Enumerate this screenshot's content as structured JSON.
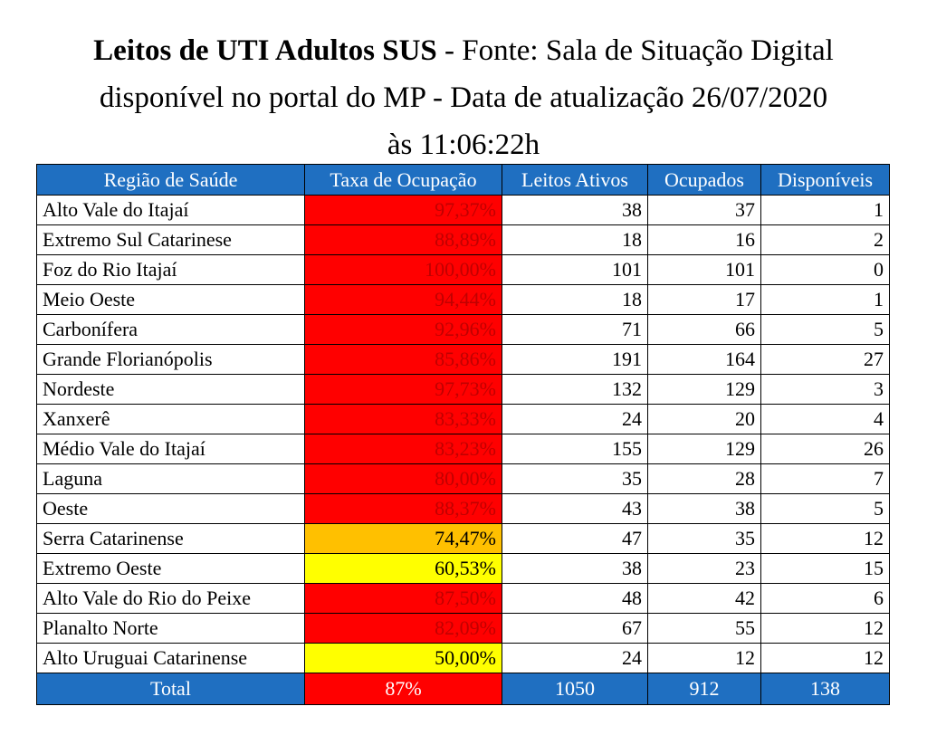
{
  "title": {
    "bold": "Leitos de UTI Adultos SUS",
    "rest_line1": " - Fonte: Sala de Situação Digital",
    "line2": "disponível no portal do MP - Data de atualização 26/07/2020",
    "line3": "às 11:06:22h"
  },
  "colors": {
    "header_bg": "#1f6fc1",
    "red": "#ff0000",
    "orange": "#ffc000",
    "yellow": "#ffff00",
    "red_text": "#c00000"
  },
  "table": {
    "headers": [
      "Região de Saúde",
      "Taxa de Ocupação",
      "Leitos Ativos",
      "Ocupados",
      "Disponíveis"
    ],
    "rows": [
      {
        "region": "Alto Vale do Itajaí",
        "rate": "97,37%",
        "level": "red",
        "ativos": "38",
        "ocupados": "37",
        "disponiveis": "1"
      },
      {
        "region": "Extremo Sul Catarinese",
        "rate": "88,89%",
        "level": "red",
        "ativos": "18",
        "ocupados": "16",
        "disponiveis": "2"
      },
      {
        "region": "Foz do Rio Itajaí",
        "rate": "100,00%",
        "level": "red",
        "ativos": "101",
        "ocupados": "101",
        "disponiveis": "0"
      },
      {
        "region": "Meio Oeste",
        "rate": "94,44%",
        "level": "red",
        "ativos": "18",
        "ocupados": "17",
        "disponiveis": "1"
      },
      {
        "region": "Carbonífera",
        "rate": "92,96%",
        "level": "red",
        "ativos": "71",
        "ocupados": "66",
        "disponiveis": "5"
      },
      {
        "region": "Grande Florianópolis",
        "rate": "85,86%",
        "level": "red",
        "ativos": "191",
        "ocupados": "164",
        "disponiveis": "27"
      },
      {
        "region": "Nordeste",
        "rate": "97,73%",
        "level": "red",
        "ativos": "132",
        "ocupados": "129",
        "disponiveis": "3"
      },
      {
        "region": "Xanxerê",
        "rate": "83,33%",
        "level": "red",
        "ativos": "24",
        "ocupados": "20",
        "disponiveis": "4"
      },
      {
        "region": "Médio Vale do Itajaí",
        "rate": "83,23%",
        "level": "red",
        "ativos": "155",
        "ocupados": "129",
        "disponiveis": "26"
      },
      {
        "region": "Laguna",
        "rate": "80,00%",
        "level": "red",
        "ativos": "35",
        "ocupados": "28",
        "disponiveis": "7"
      },
      {
        "region": "Oeste",
        "rate": "88,37%",
        "level": "red",
        "ativos": "43",
        "ocupados": "38",
        "disponiveis": "5"
      },
      {
        "region": "Serra Catarinense",
        "rate": "74,47%",
        "level": "orange",
        "ativos": "47",
        "ocupados": "35",
        "disponiveis": "12"
      },
      {
        "region": "Extremo Oeste",
        "rate": "60,53%",
        "level": "yellow",
        "ativos": "38",
        "ocupados": "23",
        "disponiveis": "15"
      },
      {
        "region": "Alto Vale do Rio do Peixe",
        "rate": "87,50%",
        "level": "red",
        "ativos": "48",
        "ocupados": "42",
        "disponiveis": "6"
      },
      {
        "region": "Planalto Norte",
        "rate": "82,09%",
        "level": "red",
        "ativos": "67",
        "ocupados": "55",
        "disponiveis": "12"
      },
      {
        "region": "Alto Uruguai Catarinense",
        "rate": "50,00%",
        "level": "yellow",
        "ativos": "24",
        "ocupados": "12",
        "disponiveis": "12"
      }
    ],
    "total": {
      "label": "Total",
      "rate": "87%",
      "ativos": "1050",
      "ocupados": "912",
      "disponiveis": "138"
    }
  }
}
